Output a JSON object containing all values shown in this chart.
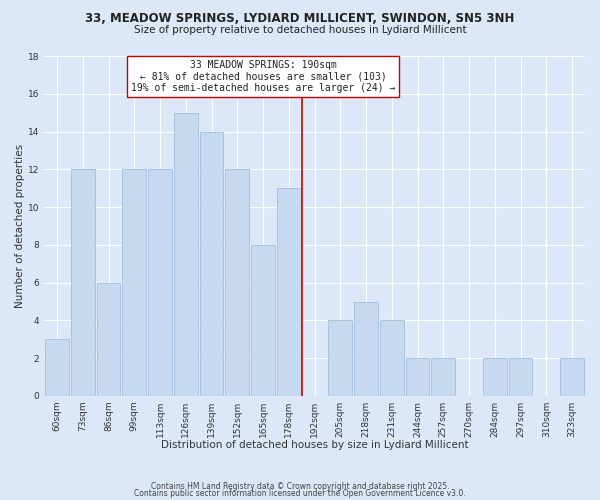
{
  "title1": "33, MEADOW SPRINGS, LYDIARD MILLICENT, SWINDON, SN5 3NH",
  "title2": "Size of property relative to detached houses in Lydiard Millicent",
  "xlabel": "Distribution of detached houses by size in Lydiard Millicent",
  "ylabel": "Number of detached properties",
  "bar_labels": [
    "60sqm",
    "73sqm",
    "86sqm",
    "99sqm",
    "113sqm",
    "126sqm",
    "139sqm",
    "152sqm",
    "165sqm",
    "178sqm",
    "192sqm",
    "205sqm",
    "218sqm",
    "231sqm",
    "244sqm",
    "257sqm",
    "270sqm",
    "284sqm",
    "297sqm",
    "310sqm",
    "323sqm"
  ],
  "bar_values": [
    3,
    12,
    6,
    12,
    12,
    15,
    14,
    12,
    8,
    11,
    0,
    4,
    5,
    4,
    2,
    2,
    0,
    2,
    2,
    0,
    2
  ],
  "bar_color": "#c6d9f0",
  "bar_edge_color": "#a8c4e0",
  "vline_position": 10,
  "vline_color": "#cc0000",
  "annotation_title": "33 MEADOW SPRINGS: 190sqm",
  "annotation_line1": "← 81% of detached houses are smaller (103)",
  "annotation_line2": "19% of semi-detached houses are larger (24) →",
  "annotation_box_facecolor": "#ffffff",
  "annotation_box_edgecolor": "#cc0000",
  "ylim": [
    0,
    18
  ],
  "yticks": [
    0,
    2,
    4,
    6,
    8,
    10,
    12,
    14,
    16,
    18
  ],
  "bg_color": "#dce8f8",
  "grid_color": "#ffffff",
  "footer1": "Contains HM Land Registry data © Crown copyright and database right 2025.",
  "footer2": "Contains public sector information licensed under the Open Government Licence v3.0.",
  "title1_fontsize": 8.5,
  "title2_fontsize": 7.5,
  "xlabel_fontsize": 7.5,
  "ylabel_fontsize": 7.5,
  "tick_fontsize": 6.5,
  "footer_fontsize": 5.5,
  "annotation_fontsize": 7.0
}
